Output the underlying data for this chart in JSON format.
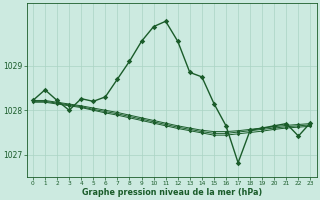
{
  "bg_color": "#cceae0",
  "grid_color": "#aad4c4",
  "line_color": "#1a5c2a",
  "xlabel": "Graphe pression niveau de la mer (hPa)",
  "x_ticks": [
    0,
    1,
    2,
    3,
    4,
    5,
    6,
    7,
    8,
    9,
    10,
    11,
    12,
    13,
    14,
    15,
    16,
    17,
    18,
    19,
    20,
    21,
    22,
    23
  ],
  "ylim": [
    1026.5,
    1030.4
  ],
  "yticks": [
    1027,
    1028,
    1029
  ],
  "xlim": [
    -0.5,
    23.5
  ],
  "ref1_x": [
    0,
    1,
    2,
    3,
    4,
    5,
    6,
    7,
    8,
    9,
    10,
    11,
    12,
    13,
    14,
    15,
    16,
    17,
    18,
    19,
    20,
    21,
    22,
    23
  ],
  "ref1_y": [
    1028.22,
    1028.22,
    1028.18,
    1028.14,
    1028.1,
    1028.05,
    1028.0,
    1027.95,
    1027.89,
    1027.83,
    1027.77,
    1027.71,
    1027.65,
    1027.6,
    1027.55,
    1027.52,
    1027.52,
    1027.54,
    1027.57,
    1027.6,
    1027.63,
    1027.66,
    1027.68,
    1027.7
  ],
  "ref2_x": [
    0,
    1,
    2,
    3,
    4,
    5,
    6,
    7,
    8,
    9,
    10,
    11,
    12,
    13,
    14,
    15,
    16,
    17,
    18,
    19,
    20,
    21,
    22,
    23
  ],
  "ref2_y": [
    1028.2,
    1028.2,
    1028.16,
    1028.12,
    1028.08,
    1028.02,
    1027.97,
    1027.92,
    1027.86,
    1027.8,
    1027.74,
    1027.68,
    1027.62,
    1027.57,
    1027.52,
    1027.48,
    1027.48,
    1027.51,
    1027.54,
    1027.57,
    1027.6,
    1027.63,
    1027.65,
    1027.67
  ],
  "ref3_x": [
    0,
    1,
    2,
    3,
    4,
    5,
    6,
    7,
    8,
    9,
    10,
    11,
    12,
    13,
    14,
    15,
    16,
    17,
    18,
    19,
    20,
    21,
    22,
    23
  ],
  "ref3_y": [
    1028.18,
    1028.18,
    1028.14,
    1028.1,
    1028.06,
    1028.0,
    1027.94,
    1027.89,
    1027.83,
    1027.77,
    1027.71,
    1027.65,
    1027.59,
    1027.54,
    1027.49,
    1027.44,
    1027.44,
    1027.47,
    1027.5,
    1027.53,
    1027.57,
    1027.6,
    1027.62,
    1027.64
  ],
  "main_x": [
    0,
    1,
    2,
    3,
    4,
    5,
    6,
    7,
    8,
    9,
    10,
    11,
    12,
    13,
    14,
    15,
    16,
    17,
    18,
    19,
    20,
    21,
    22,
    23
  ],
  "main_y": [
    1028.22,
    1028.46,
    1028.22,
    1028.0,
    1028.26,
    1028.2,
    1028.3,
    1028.7,
    1029.1,
    1029.55,
    1029.88,
    1030.0,
    1029.55,
    1028.85,
    1028.75,
    1028.15,
    1027.65,
    1026.82,
    1027.55,
    1027.6,
    1027.65,
    1027.7,
    1027.42,
    1027.72
  ]
}
